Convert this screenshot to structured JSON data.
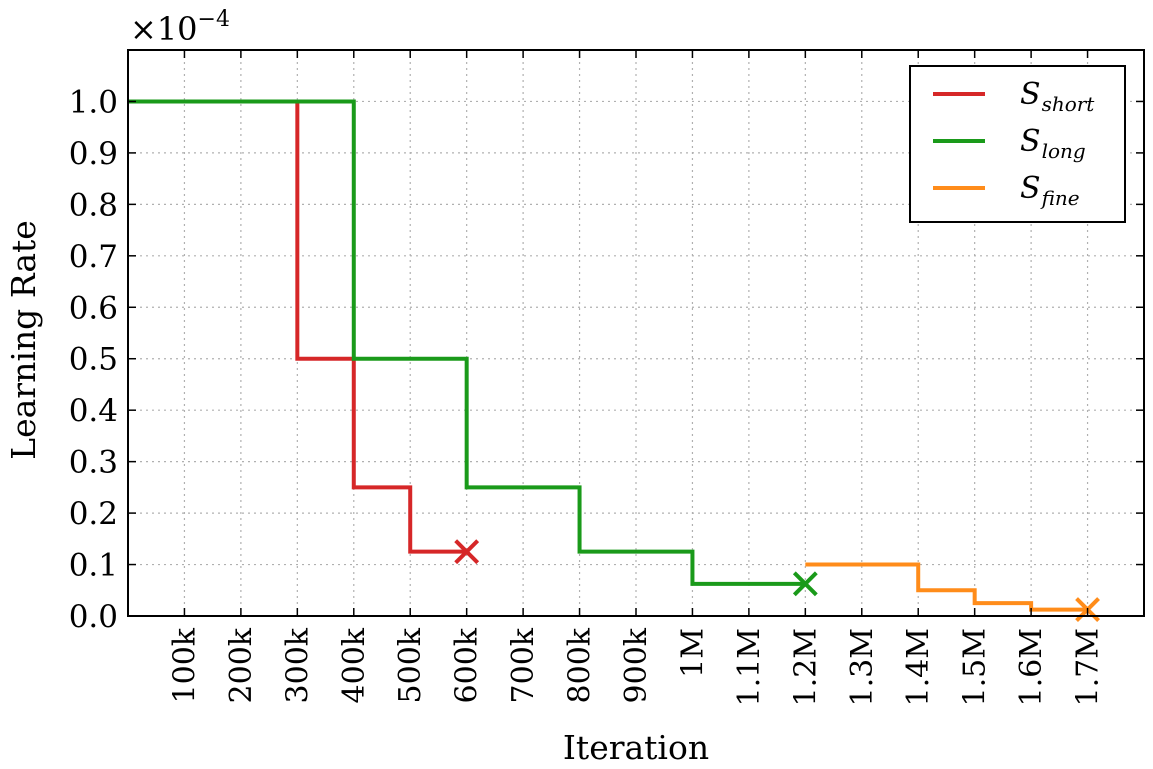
{
  "chart_data": {
    "type": "line",
    "title": "",
    "xlabel": "Iteration",
    "ylabel": "Learning Rate",
    "y_multiplier_base": "×10",
    "y_multiplier_exp": "−4",
    "xlim": [
      0,
      1800000
    ],
    "ylim": [
      0,
      1.1
    ],
    "x_ticks": [
      100000,
      200000,
      300000,
      400000,
      500000,
      600000,
      700000,
      800000,
      900000,
      1000000,
      1100000,
      1200000,
      1300000,
      1400000,
      1500000,
      1600000,
      1700000
    ],
    "x_tick_labels": [
      "100k",
      "200k",
      "300k",
      "400k",
      "500k",
      "600k",
      "700k",
      "800k",
      "900k",
      "1M",
      "1.1M",
      "1.2M",
      "1.3M",
      "1.4M",
      "1.5M",
      "1.6M",
      "1.7M"
    ],
    "y_ticks": [
      0,
      0.1,
      0.2,
      0.3,
      0.4,
      0.5,
      0.6,
      0.7,
      0.8,
      0.9,
      1.0
    ],
    "y_tick_labels": [
      "0.0",
      "0.1",
      "0.2",
      "0.3",
      "0.4",
      "0.5",
      "0.6",
      "0.7",
      "0.8",
      "0.9",
      "1.0"
    ],
    "grid": true,
    "legend_position": "top-right",
    "series": [
      {
        "name": "S",
        "name_sub": "short",
        "color": "#d62728",
        "style": "step",
        "x": [
          0,
          300000,
          400000,
          500000,
          600000
        ],
        "y": [
          1.0,
          0.5,
          0.25,
          0.125,
          0.125
        ],
        "end_marker": "x"
      },
      {
        "name": "S",
        "name_sub": "long",
        "color": "#1a9a1a",
        "style": "step",
        "x": [
          0,
          400000,
          600000,
          800000,
          1000000,
          1200000
        ],
        "y": [
          1.0,
          0.5,
          0.25,
          0.125,
          0.0625,
          0.0625
        ],
        "end_marker": "x"
      },
      {
        "name": "S",
        "name_sub": "fine",
        "color": "#ff8c1a",
        "style": "step",
        "x": [
          1200000,
          1400000,
          1500000,
          1600000,
          1700000
        ],
        "y": [
          0.1,
          0.05,
          0.025,
          0.0125,
          0.0125
        ],
        "end_marker": "x"
      }
    ]
  }
}
